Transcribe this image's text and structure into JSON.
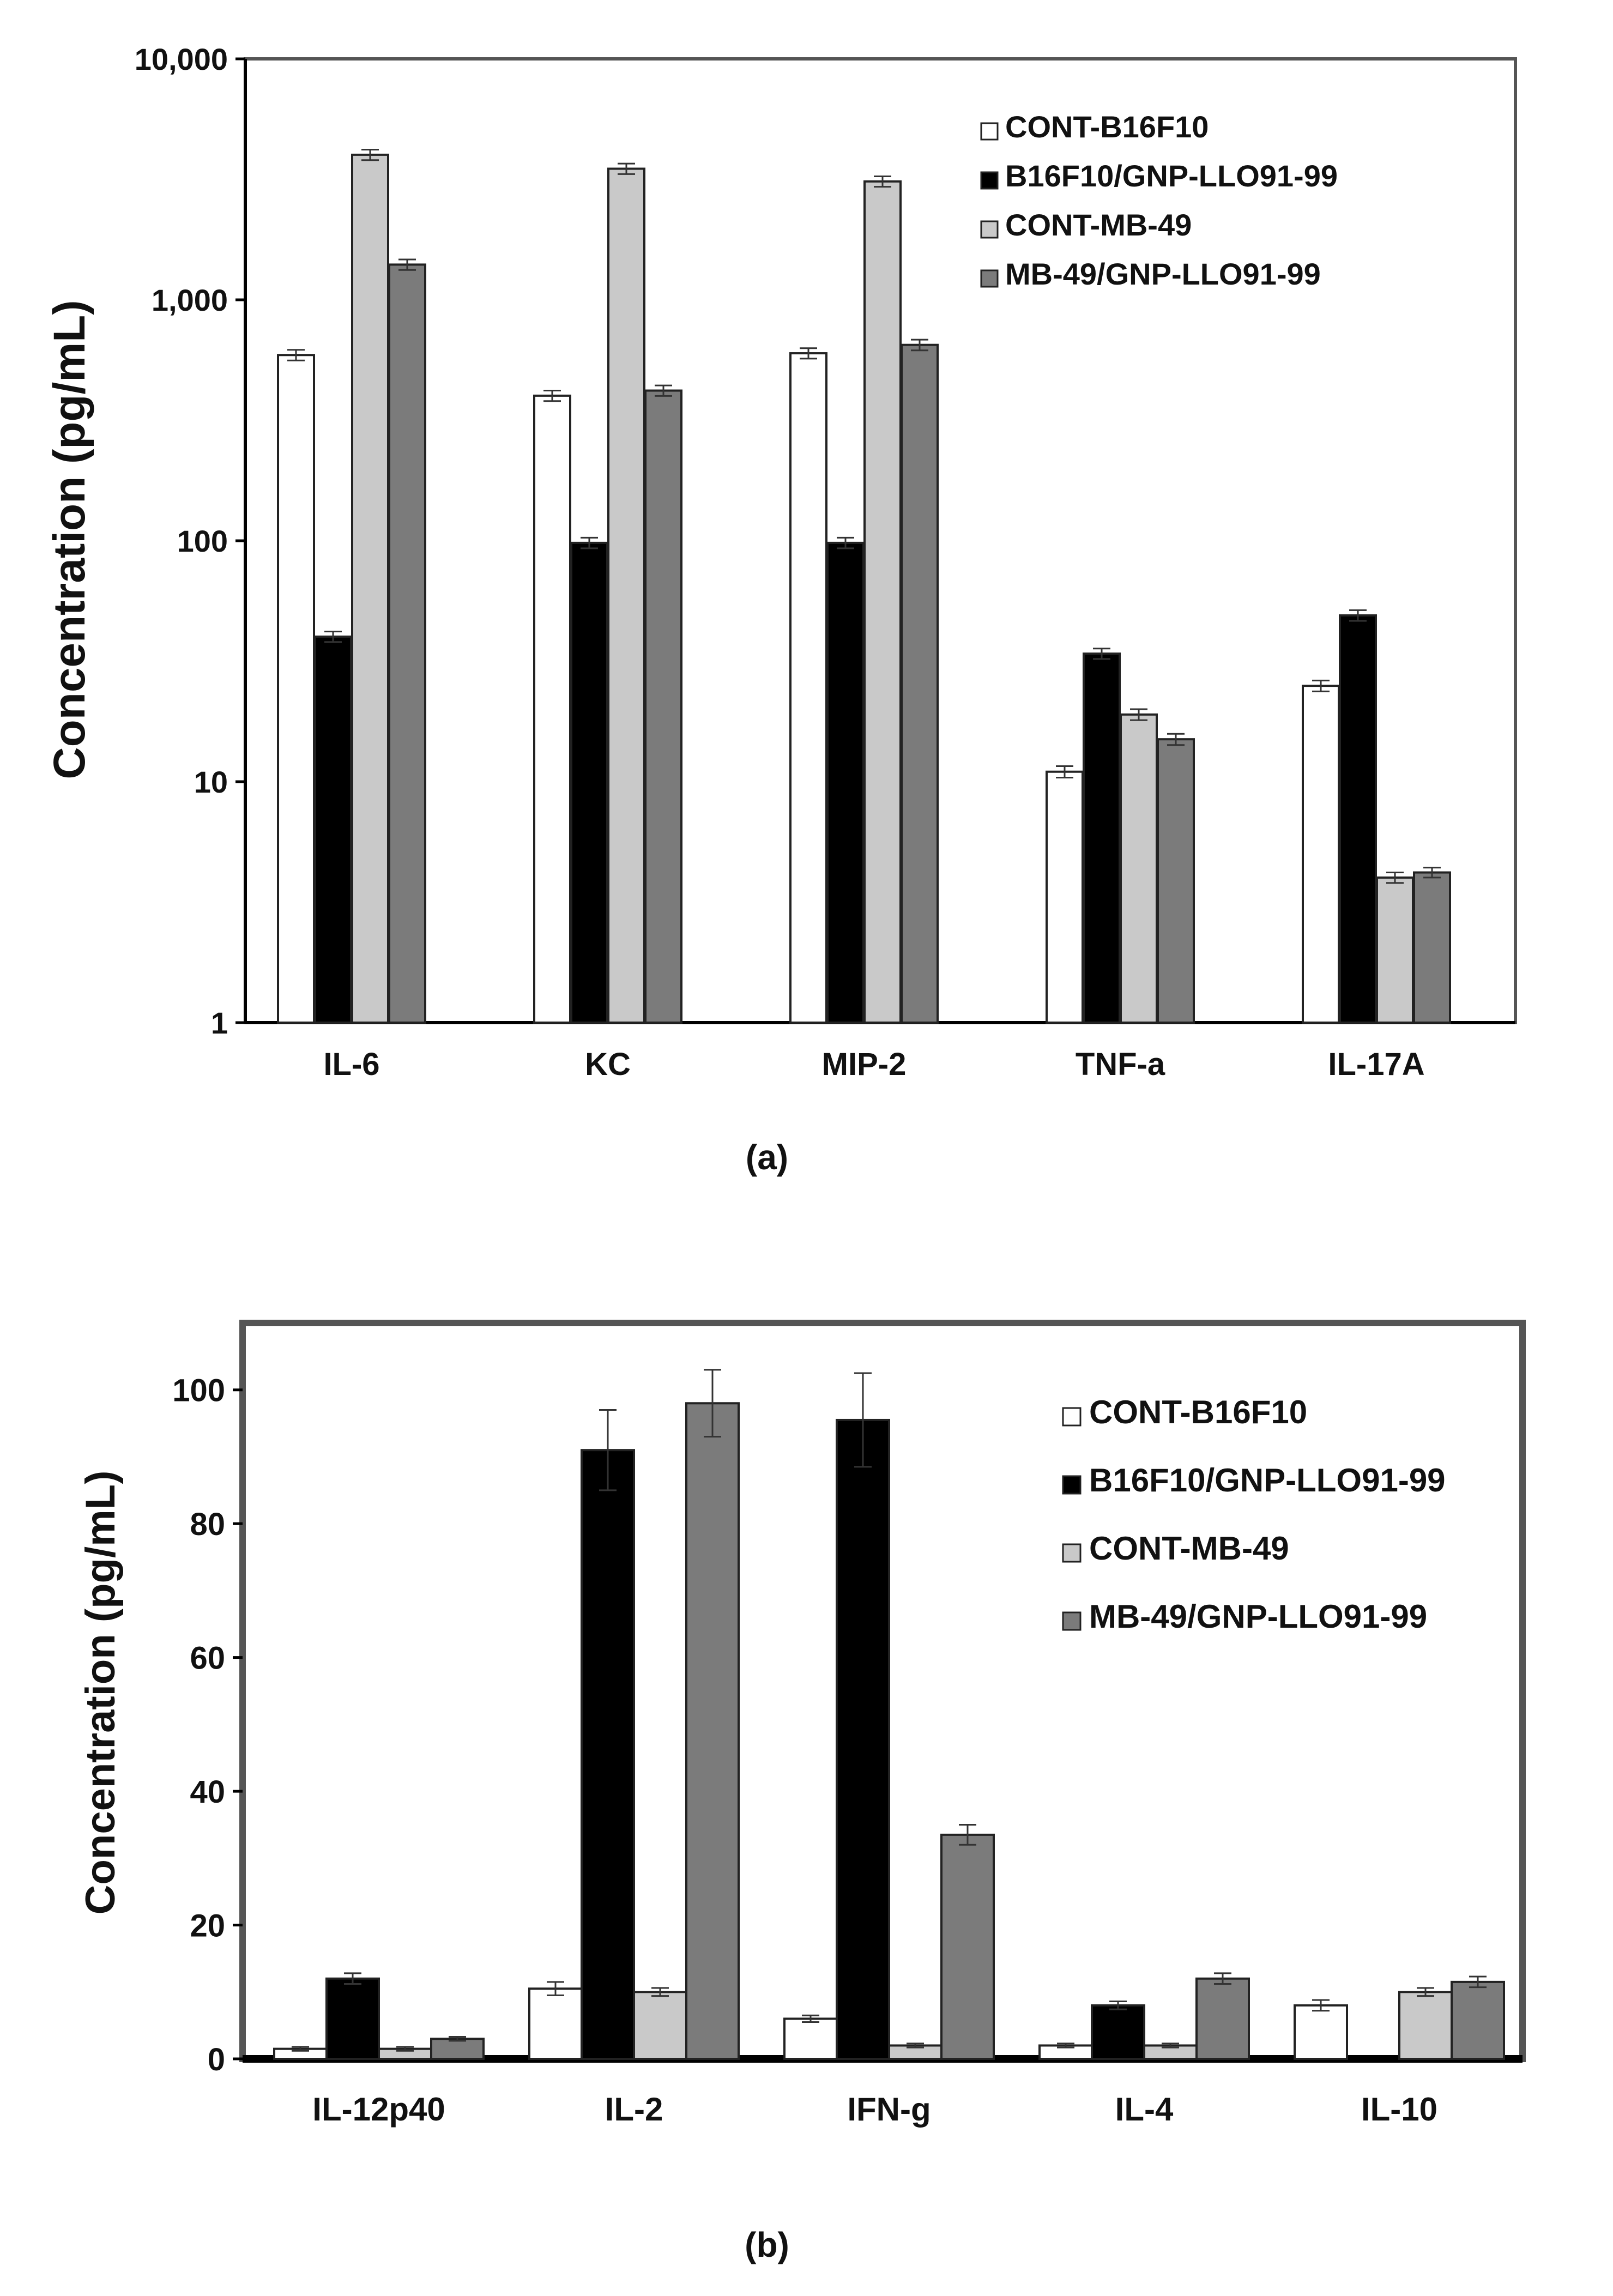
{
  "chart_data": [
    {
      "type": "bar",
      "panel_label": "(a)",
      "ylabel": "Concentration (pg/mL)",
      "xlabel": "",
      "yscale": "log",
      "ylim": [
        1,
        10000
      ],
      "ytick_values": [
        1,
        10,
        100,
        1000,
        10000
      ],
      "ytick_labels": [
        "1",
        "10",
        "100",
        "1,000",
        "10,000"
      ],
      "categories": [
        "IL-6",
        "KC",
        "MIP-2",
        "TNF-a",
        "IL-17A"
      ],
      "series": [
        {
          "name": "CONT-B16F10",
          "color": "#ffffff",
          "values": [
            590,
            400,
            600,
            11,
            25
          ],
          "errors": [
            30,
            20,
            30,
            0.6,
            1.3
          ]
        },
        {
          "name": "B16F10/GNP-LLO91-99",
          "color": "#000000",
          "values": [
            40,
            98,
            98,
            34,
            49
          ],
          "errors": [
            2,
            5,
            5,
            1.7,
            2.5
          ]
        },
        {
          "name": "CONT-MB-49",
          "color": "#c9c9c9",
          "values": [
            4000,
            3500,
            3100,
            19,
            4
          ],
          "errors": [
            200,
            175,
            155,
            1,
            0.2
          ]
        },
        {
          "name": "MB-49/GNP-LLO91-99",
          "color": "#7b7b7b",
          "values": [
            1400,
            420,
            650,
            15,
            4.2
          ],
          "errors": [
            70,
            21,
            33,
            0.8,
            0.2
          ]
        }
      ],
      "legend_position": "top-right",
      "grid": false
    },
    {
      "type": "bar",
      "panel_label": "(b)",
      "ylabel": "Concentration (pg/mL)",
      "xlabel": "",
      "yscale": "linear",
      "ylim": [
        0,
        110
      ],
      "ytick_values": [
        0,
        20,
        40,
        60,
        80,
        100
      ],
      "ytick_labels": [
        "0",
        "20",
        "40",
        "60",
        "80",
        "100"
      ],
      "categories": [
        "IL-12p40",
        "IL-2",
        "IFN-g",
        "IL-4",
        "IL-10"
      ],
      "series": [
        {
          "name": "CONT-B16F10",
          "color": "#ffffff",
          "values": [
            1.5,
            10.5,
            6,
            2,
            8
          ],
          "errors": [
            0.3,
            1,
            0.5,
            0.3,
            0.8
          ]
        },
        {
          "name": "B16F10/GNP-LLO91-99",
          "color": "#000000",
          "values": [
            12,
            91,
            95.5,
            8,
            0
          ],
          "errors": [
            0.8,
            6,
            7,
            0.6,
            0
          ]
        },
        {
          "name": "CONT-MB-49",
          "color": "#c9c9c9",
          "values": [
            1.5,
            10,
            2,
            2,
            10
          ],
          "errors": [
            0.3,
            0.6,
            0.3,
            0.3,
            0.6
          ]
        },
        {
          "name": "MB-49/GNP-LLO91-99",
          "color": "#7b7b7b",
          "values": [
            3,
            98,
            33.5,
            12,
            11.5
          ],
          "errors": [
            0.3,
            5,
            1.5,
            0.8,
            0.8
          ]
        }
      ],
      "legend_position": "top-right",
      "grid": false
    }
  ]
}
